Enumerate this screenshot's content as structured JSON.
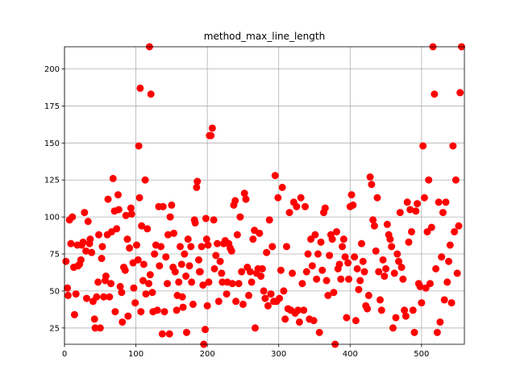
{
  "chart_data": {
    "type": "scatter",
    "title": "method_max_line_length",
    "xlabel": "",
    "ylabel": "",
    "xlim": [
      0,
      560
    ],
    "ylim": [
      14,
      215
    ],
    "xticks": [
      0,
      100,
      200,
      300,
      400,
      500
    ],
    "yticks": [
      25,
      50,
      75,
      100,
      125,
      150,
      175,
      200
    ],
    "grid": true,
    "marker_color": "#ff0000",
    "points": [
      [
        2,
        70
      ],
      [
        4,
        52
      ],
      [
        5,
        47
      ],
      [
        7,
        98
      ],
      [
        9,
        82
      ],
      [
        11,
        100
      ],
      [
        13,
        66
      ],
      [
        14,
        34
      ],
      [
        16,
        48
      ],
      [
        18,
        81
      ],
      [
        19,
        67
      ],
      [
        21,
        68
      ],
      [
        23,
        71
      ],
      [
        24,
        81
      ],
      [
        26,
        83
      ],
      [
        28,
        103
      ],
      [
        30,
        77
      ],
      [
        31,
        45
      ],
      [
        33,
        97
      ],
      [
        35,
        82
      ],
      [
        36,
        85
      ],
      [
        38,
        76
      ],
      [
        40,
        43
      ],
      [
        42,
        31
      ],
      [
        43,
        25
      ],
      [
        45,
        46
      ],
      [
        47,
        56
      ],
      [
        48,
        88
      ],
      [
        50,
        25
      ],
      [
        52,
        72
      ],
      [
        53,
        80
      ],
      [
        55,
        46
      ],
      [
        57,
        57
      ],
      [
        58,
        60
      ],
      [
        60,
        88
      ],
      [
        61,
        112
      ],
      [
        63,
        46
      ],
      [
        65,
        55
      ],
      [
        66,
        90
      ],
      [
        68,
        126
      ],
      [
        70,
        104
      ],
      [
        71,
        36
      ],
      [
        73,
        92
      ],
      [
        75,
        115
      ],
      [
        76,
        105
      ],
      [
        78,
        53
      ],
      [
        80,
        49
      ],
      [
        81,
        29
      ],
      [
        83,
        66
      ],
      [
        85,
        64
      ],
      [
        86,
        101
      ],
      [
        88,
        85
      ],
      [
        89,
        33
      ],
      [
        91,
        79
      ],
      [
        93,
        106
      ],
      [
        94,
        102
      ],
      [
        96,
        69
      ],
      [
        97,
        52
      ],
      [
        99,
        42
      ],
      [
        101,
        81
      ],
      [
        103,
        71
      ],
      [
        104,
        148
      ],
      [
        105,
        113
      ],
      [
        106,
        187
      ],
      [
        107,
        36
      ],
      [
        108,
        94
      ],
      [
        110,
        57
      ],
      [
        111,
        68
      ],
      [
        113,
        125
      ],
      [
        114,
        48
      ],
      [
        116,
        92
      ],
      [
        118,
        55
      ],
      [
        119,
        215
      ],
      [
        120,
        61
      ],
      [
        121,
        183
      ],
      [
        123,
        49
      ],
      [
        124,
        36
      ],
      [
        126,
        75
      ],
      [
        128,
        81
      ],
      [
        130,
        37
      ],
      [
        132,
        107
      ],
      [
        133,
        67
      ],
      [
        135,
        80
      ],
      [
        137,
        21
      ],
      [
        138,
        107
      ],
      [
        140,
        36
      ],
      [
        142,
        73
      ],
      [
        144,
        55
      ],
      [
        145,
        88
      ],
      [
        147,
        21
      ],
      [
        148,
        100
      ],
      [
        150,
        108
      ],
      [
        152,
        66
      ],
      [
        153,
        89
      ],
      [
        155,
        63
      ],
      [
        157,
        37
      ],
      [
        158,
        47
      ],
      [
        160,
        56
      ],
      [
        162,
        80
      ],
      [
        164,
        68
      ],
      [
        165,
        46
      ],
      [
        166,
        39
      ],
      [
        168,
        75
      ],
      [
        170,
        60
      ],
      [
        171,
        22
      ],
      [
        173,
        85
      ],
      [
        175,
        67
      ],
      [
        177,
        80
      ],
      [
        178,
        56
      ],
      [
        180,
        41
      ],
      [
        182,
        98
      ],
      [
        183,
        96
      ],
      [
        185,
        120
      ],
      [
        186,
        124
      ],
      [
        188,
        71
      ],
      [
        189,
        63
      ],
      [
        190,
        63
      ],
      [
        192,
        80
      ],
      [
        194,
        54
      ],
      [
        195,
        14
      ],
      [
        197,
        24
      ],
      [
        198,
        99
      ],
      [
        199,
        85
      ],
      [
        200,
        40
      ],
      [
        201,
        81
      ],
      [
        202,
        56
      ],
      [
        203,
        155
      ],
      [
        205,
        155
      ],
      [
        207,
        160
      ],
      [
        209,
        98
      ],
      [
        210,
        65
      ],
      [
        212,
        74
      ],
      [
        214,
        82
      ],
      [
        216,
        43
      ],
      [
        218,
        70
      ],
      [
        220,
        62
      ],
      [
        221,
        56
      ],
      [
        223,
        82
      ],
      [
        225,
        84
      ],
      [
        227,
        48
      ],
      [
        228,
        56
      ],
      [
        230,
        82
      ],
      [
        232,
        79
      ],
      [
        234,
        77
      ],
      [
        235,
        55
      ],
      [
        237,
        108
      ],
      [
        239,
        111
      ],
      [
        240,
        43
      ],
      [
        242,
        88
      ],
      [
        244,
        55
      ],
      [
        246,
        100
      ],
      [
        248,
        63
      ],
      [
        250,
        41
      ],
      [
        252,
        116
      ],
      [
        254,
        112
      ],
      [
        256,
        66
      ],
      [
        258,
        47
      ],
      [
        260,
        63
      ],
      [
        262,
        56
      ],
      [
        264,
        85
      ],
      [
        266,
        91
      ],
      [
        267,
        25
      ],
      [
        269,
        62
      ],
      [
        271,
        65
      ],
      [
        273,
        89
      ],
      [
        275,
        60
      ],
      [
        277,
        65
      ],
      [
        279,
        50
      ],
      [
        281,
        45
      ],
      [
        283,
        76
      ],
      [
        285,
        40
      ],
      [
        287,
        98
      ],
      [
        289,
        48
      ],
      [
        291,
        80
      ],
      [
        293,
        43
      ],
      [
        295,
        128
      ],
      [
        297,
        43
      ],
      [
        299,
        113
      ],
      [
        301,
        45
      ],
      [
        303,
        64
      ],
      [
        305,
        120
      ],
      [
        307,
        50
      ],
      [
        309,
        31
      ],
      [
        311,
        80
      ],
      [
        313,
        38
      ],
      [
        315,
        103
      ],
      [
        317,
        37
      ],
      [
        319,
        62
      ],
      [
        321,
        110
      ],
      [
        323,
        35
      ],
      [
        325,
        107
      ],
      [
        327,
        37
      ],
      [
        329,
        29
      ],
      [
        331,
        113
      ],
      [
        333,
        55
      ],
      [
        335,
        37
      ],
      [
        337,
        107
      ],
      [
        339,
        63
      ],
      [
        341,
        75
      ],
      [
        343,
        31
      ],
      [
        345,
        85
      ],
      [
        347,
        67
      ],
      [
        349,
        30
      ],
      [
        351,
        88
      ],
      [
        353,
        58
      ],
      [
        355,
        75
      ],
      [
        357,
        22
      ],
      [
        359,
        83
      ],
      [
        361,
        64
      ],
      [
        363,
        103
      ],
      [
        365,
        106
      ],
      [
        367,
        57
      ],
      [
        369,
        47
      ],
      [
        371,
        74
      ],
      [
        373,
        88
      ],
      [
        375,
        85
      ],
      [
        377,
        49
      ],
      [
        379,
        14
      ],
      [
        381,
        90
      ],
      [
        383,
        65
      ],
      [
        385,
        68
      ],
      [
        387,
        58
      ],
      [
        389,
        80
      ],
      [
        391,
        85
      ],
      [
        393,
        73
      ],
      [
        395,
        32
      ],
      [
        397,
        69
      ],
      [
        398,
        58
      ],
      [
        400,
        107
      ],
      [
        402,
        115
      ],
      [
        404,
        108
      ],
      [
        406,
        73
      ],
      [
        408,
        30
      ],
      [
        410,
        65
      ],
      [
        412,
        51
      ],
      [
        414,
        57
      ],
      [
        416,
        82
      ],
      [
        418,
        70
      ],
      [
        420,
        63
      ],
      [
        422,
        40
      ],
      [
        424,
        38
      ],
      [
        426,
        47
      ],
      [
        428,
        127
      ],
      [
        430,
        122
      ],
      [
        432,
        98
      ],
      [
        434,
        94
      ],
      [
        436,
        77
      ],
      [
        438,
        113
      ],
      [
        440,
        63
      ],
      [
        442,
        44
      ],
      [
        444,
        37
      ],
      [
        446,
        71
      ],
      [
        448,
        60
      ],
      [
        450,
        65
      ],
      [
        452,
        95
      ],
      [
        454,
        88
      ],
      [
        456,
        85
      ],
      [
        458,
        80
      ],
      [
        460,
        25
      ],
      [
        462,
        62
      ],
      [
        464,
        32
      ],
      [
        466,
        75
      ],
      [
        468,
        70
      ],
      [
        470,
        103
      ],
      [
        472,
        66
      ],
      [
        474,
        58
      ],
      [
        476,
        37
      ],
      [
        478,
        33
      ],
      [
        480,
        110
      ],
      [
        482,
        83
      ],
      [
        484,
        105
      ],
      [
        486,
        90
      ],
      [
        488,
        37
      ],
      [
        490,
        22
      ],
      [
        492,
        104
      ],
      [
        494,
        109
      ],
      [
        496,
        55
      ],
      [
        498,
        53
      ],
      [
        500,
        42
      ],
      [
        502,
        148
      ],
      [
        504,
        113
      ],
      [
        506,
        52
      ],
      [
        508,
        90
      ],
      [
        510,
        125
      ],
      [
        512,
        55
      ],
      [
        514,
        93
      ],
      [
        516,
        215
      ],
      [
        518,
        183
      ],
      [
        520,
        65
      ],
      [
        522,
        22
      ],
      [
        524,
        110
      ],
      [
        526,
        29
      ],
      [
        528,
        73
      ],
      [
        530,
        103
      ],
      [
        532,
        44
      ],
      [
        534,
        110
      ],
      [
        536,
        56
      ],
      [
        538,
        70
      ],
      [
        540,
        81
      ],
      [
        542,
        42
      ],
      [
        544,
        148
      ],
      [
        546,
        90
      ],
      [
        548,
        125
      ],
      [
        550,
        62
      ],
      [
        552,
        94
      ],
      [
        554,
        184
      ],
      [
        556,
        215
      ]
    ]
  }
}
